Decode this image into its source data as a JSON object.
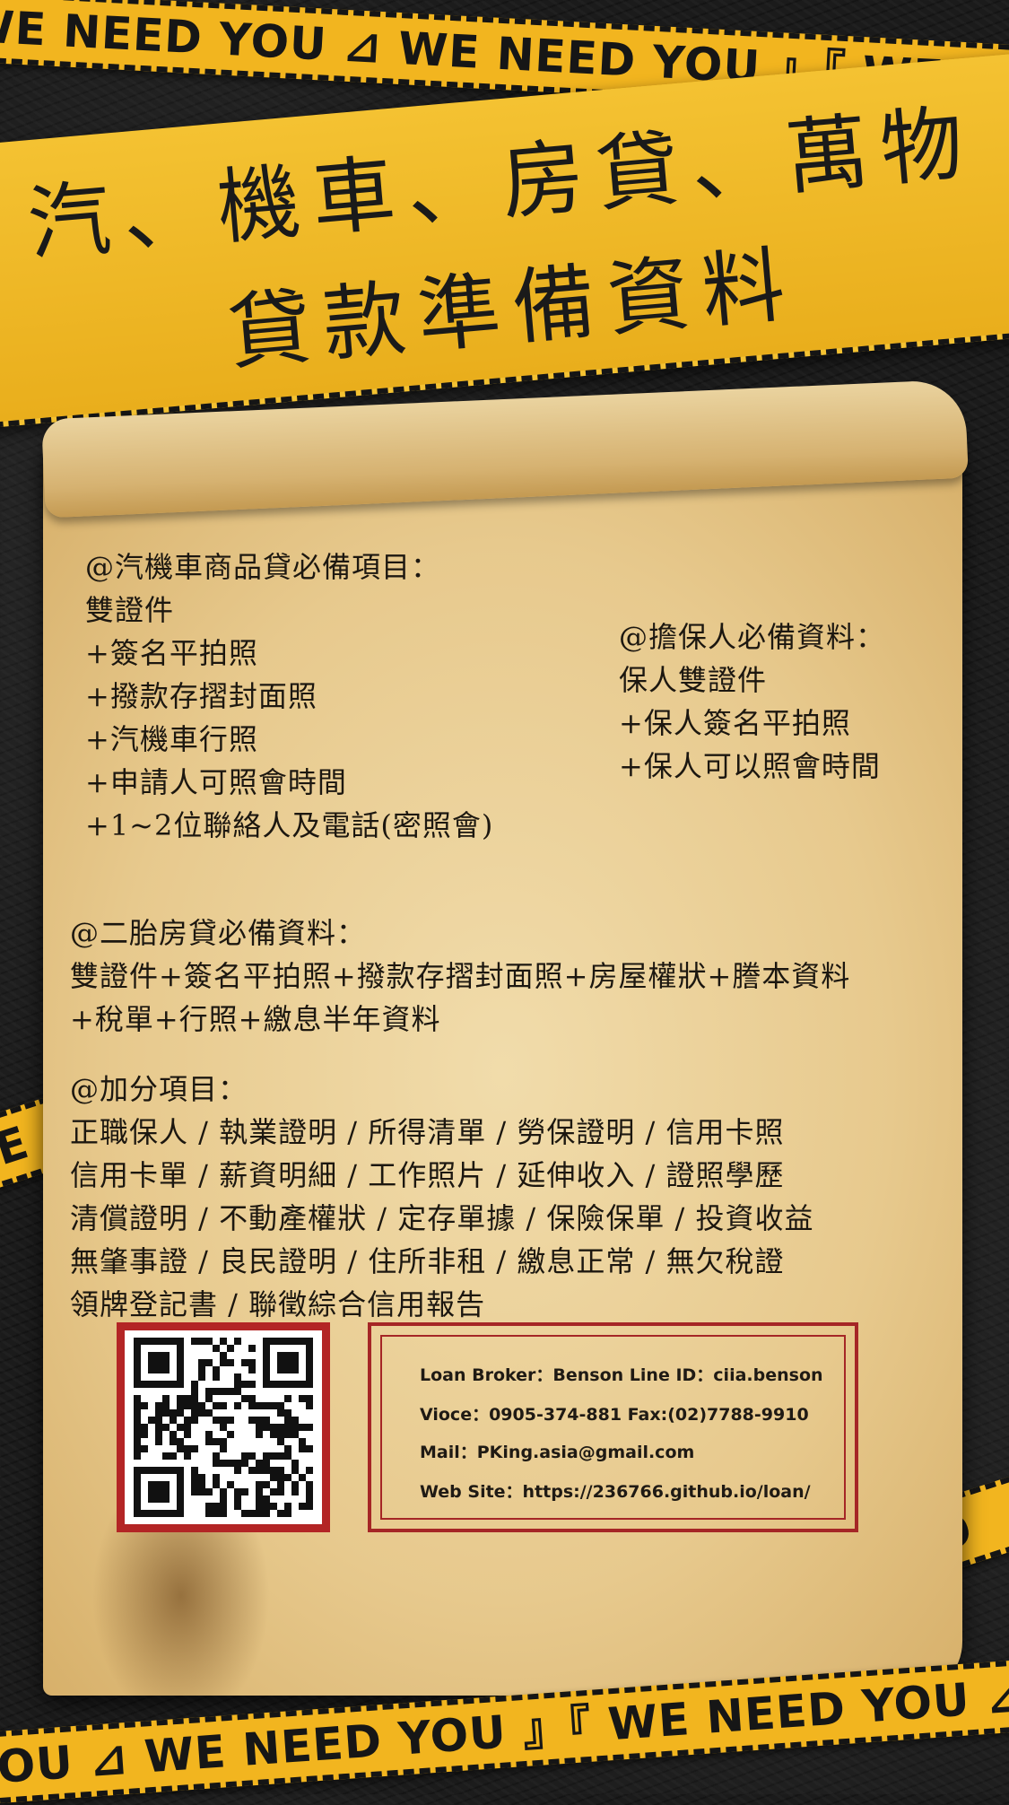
{
  "tapes": {
    "top": "WE NEED YOU ⊿ WE NEED YOU 』『 WE NEED YOU",
    "left": "WE",
    "right": "YO",
    "bottom": "YOU ⊿ WE NEED YOU 』『 WE NEED YOU ⊿"
  },
  "title": {
    "line1": "汽、機車、房貸、萬物",
    "line2": "貸款準備資料"
  },
  "car_loan": {
    "heading": "@汽機車商品貸必備項目：",
    "items": [
      "雙證件",
      "+簽名平拍照",
      "+撥款存摺封面照",
      "+汽機車行照",
      "+申請人可照會時間",
      "+1~2位聯絡人及電話(密照會)"
    ]
  },
  "guarantor": {
    "heading": "@擔保人必備資料：",
    "items": [
      "保人雙證件",
      "+保人簽名平拍照",
      "+保人可以照會時間"
    ]
  },
  "second_mortgage": {
    "heading": "@二胎房貸必備資料：",
    "lines": [
      "雙證件+簽名平拍照+撥款存摺封面照+房屋權狀+謄本資料",
      "+稅單+行照+繳息半年資料"
    ]
  },
  "bonus": {
    "heading": "@加分項目：",
    "lines": [
      "正職保人 / 執業證明 / 所得清單 / 勞保證明 / 信用卡照",
      "信用卡單 / 薪資明細 / 工作照片 / 延伸收入 / 證照學歷",
      "清償證明 / 不動產權狀 / 定存單據 / 保險保單 / 投資收益",
      "無肇事證 / 良民證明 / 住所非租 / 繳息正常 / 無欠稅證",
      "領牌登記書 / 聯徵綜合信用報告"
    ]
  },
  "contact": {
    "line1": "Loan Broker：Benson    Line ID：ciia.benson",
    "line2": "Vioce：0905-374-881    Fax:(02)7788-9910",
    "line3": "Mail：PKing.asia@gmail.com",
    "line4": "Web Site：https://236766.github.io/loan/"
  },
  "colors": {
    "tape": "#f2b51f",
    "frame": "#b32525",
    "paper": "#ecd29c"
  }
}
